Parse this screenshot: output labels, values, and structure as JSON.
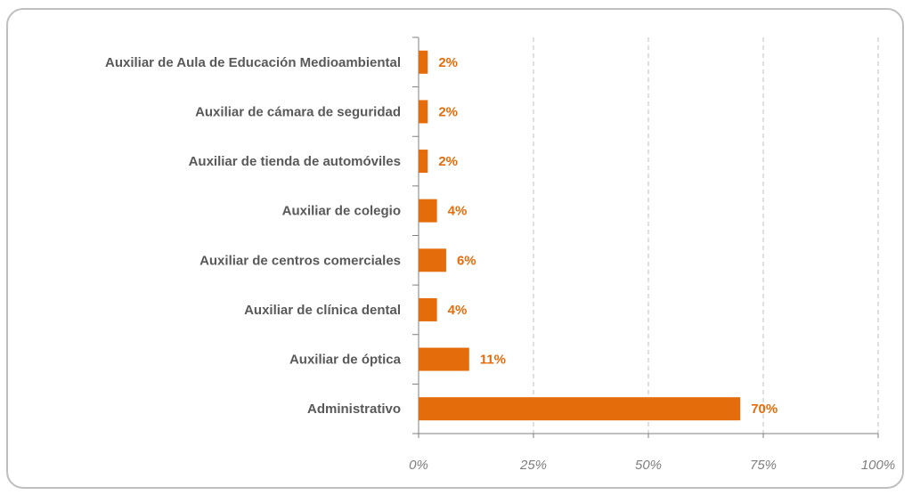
{
  "chart_data": {
    "type": "bar",
    "orientation": "horizontal",
    "categories": [
      "Auxiliar de Aula de Educación Medioambiental",
      "Auxiliar de cámara de seguridad",
      "Auxiliar de tienda de automóviles",
      "Auxiliar de colegio",
      "Auxiliar de centros comerciales",
      "Auxiliar de clínica dental",
      "Auxiliar de óptica",
      "Administrativo"
    ],
    "values": [
      2,
      2,
      2,
      4,
      6,
      4,
      11,
      70
    ],
    "value_labels": [
      "2%",
      "2%",
      "2%",
      "4%",
      "6%",
      "4%",
      "11%",
      "70%"
    ],
    "color": "#e46c0a",
    "xlim": [
      0,
      100
    ],
    "xticks": [
      {
        "value": 0,
        "label": "0%"
      },
      {
        "value": 25,
        "label": "25%"
      },
      {
        "value": 50,
        "label": "50%"
      },
      {
        "value": 75,
        "label": "75%"
      },
      {
        "value": 100,
        "label": "100%"
      }
    ],
    "grid": true
  }
}
